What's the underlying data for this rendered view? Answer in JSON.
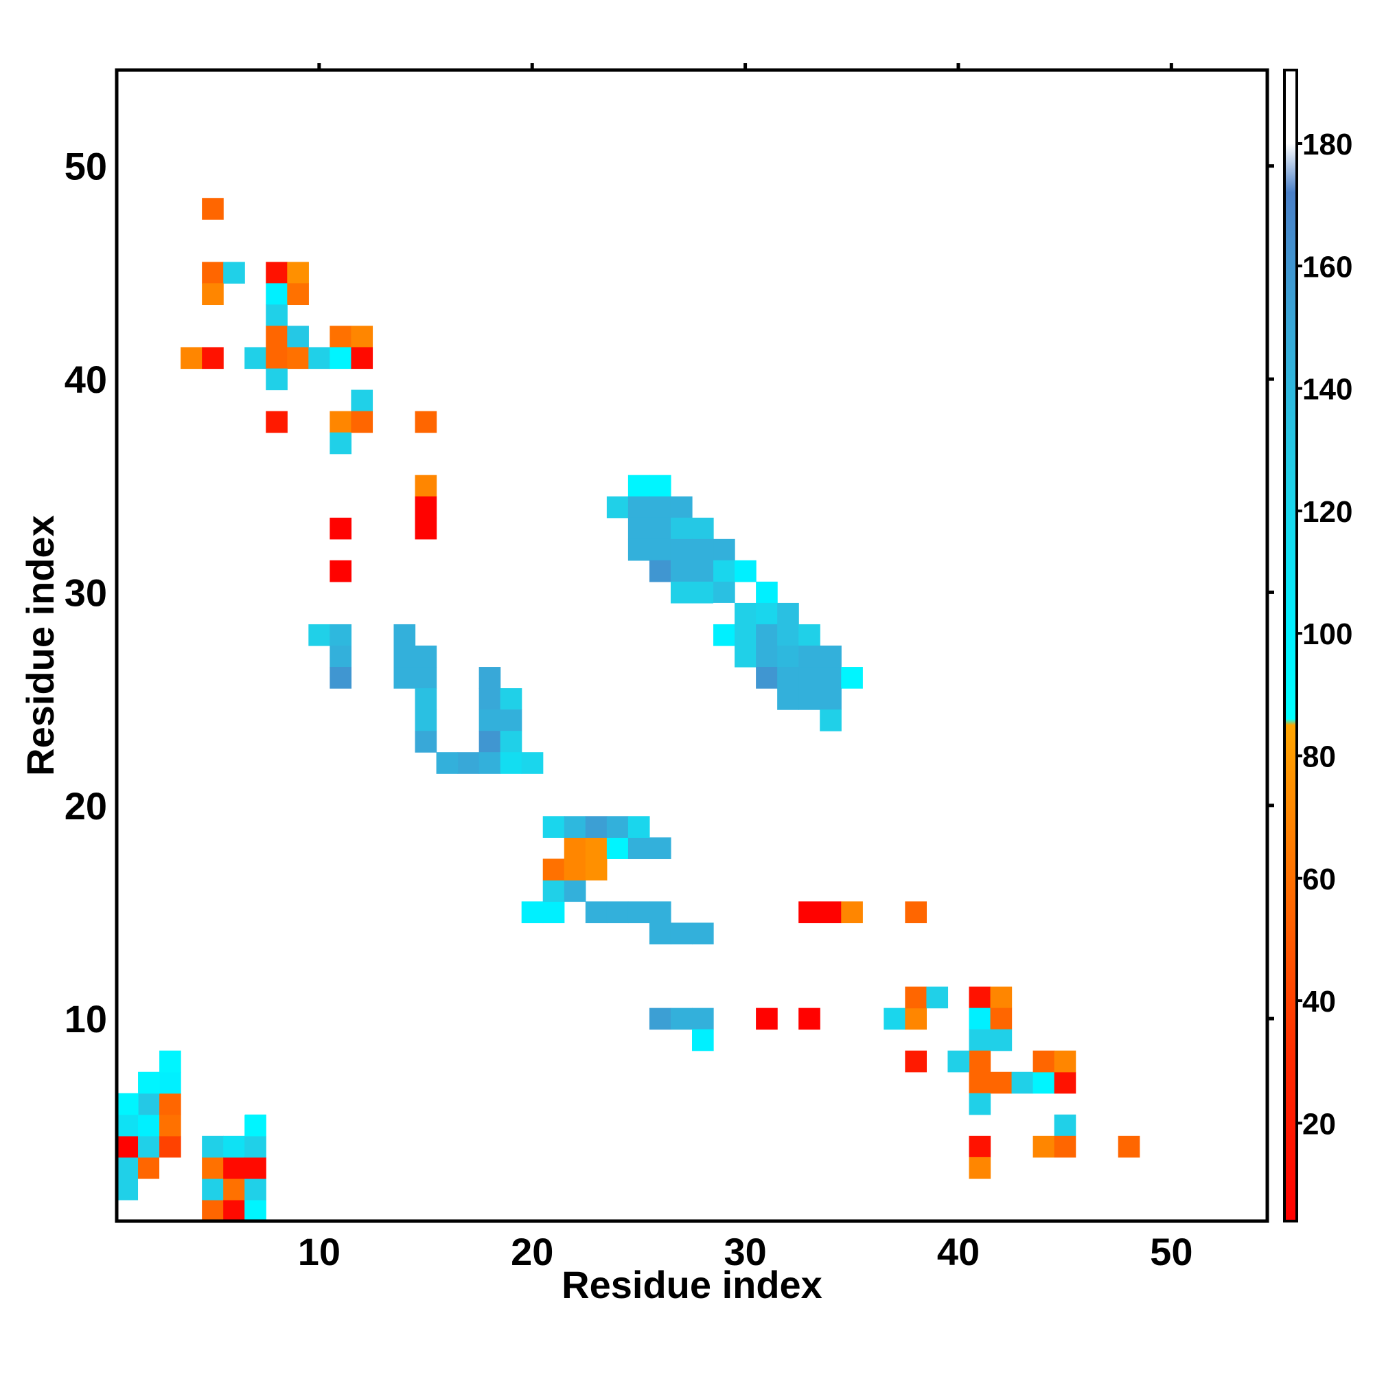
{
  "chart_data": {
    "type": "heatmap",
    "title": "",
    "xlabel": "Residue index",
    "ylabel": "Residue index",
    "xlim": [
      0.5,
      54.5
    ],
    "ylim": [
      0.5,
      54.5
    ],
    "x_ticks": [
      10,
      20,
      30,
      40,
      50
    ],
    "y_ticks": [
      10,
      20,
      30,
      40,
      50
    ],
    "grid": false,
    "colorbar": {
      "range": [
        4,
        192
      ],
      "ticks": [
        20,
        40,
        60,
        80,
        100,
        120,
        140,
        160,
        180
      ],
      "stops": [
        {
          "value": 4,
          "color": "#ff0000"
        },
        {
          "value": 30,
          "color": "#ff2a00"
        },
        {
          "value": 55,
          "color": "#ff6600"
        },
        {
          "value": 85,
          "color": "#ffa500"
        },
        {
          "value": 86,
          "color": "#00ffff"
        },
        {
          "value": 100,
          "color": "#00f0ff"
        },
        {
          "value": 125,
          "color": "#20d0e8"
        },
        {
          "value": 150,
          "color": "#38a8d8"
        },
        {
          "value": 172,
          "color": "#4a80c8"
        },
        {
          "value": 180,
          "color": "#ffffff"
        },
        {
          "value": 192,
          "color": "#ffffff"
        }
      ]
    },
    "cells": [
      [
        1,
        1,
        190
      ],
      [
        1,
        2,
        125
      ],
      [
        1,
        3,
        125
      ],
      [
        1,
        4,
        5
      ],
      [
        1,
        5,
        112
      ],
      [
        2,
        2,
        190
      ],
      [
        2,
        3,
        55
      ],
      [
        2,
        4,
        125
      ],
      [
        2,
        5,
        100
      ],
      [
        2,
        6,
        130
      ],
      [
        3,
        3,
        190
      ],
      [
        3,
        4,
        40
      ],
      [
        3,
        5,
        60
      ],
      [
        3,
        6,
        55
      ],
      [
        3,
        7,
        100
      ],
      [
        5,
        1,
        55
      ],
      [
        5,
        2,
        125
      ],
      [
        5,
        3,
        60
      ],
      [
        5,
        4,
        125
      ],
      [
        6,
        1,
        10
      ],
      [
        6,
        2,
        60
      ],
      [
        6,
        3,
        10
      ],
      [
        6,
        4,
        112
      ],
      [
        7,
        1,
        95
      ],
      [
        7,
        2,
        125
      ],
      [
        7,
        3,
        10
      ],
      [
        7,
        4,
        125
      ],
      [
        7,
        5,
        95
      ],
      [
        1,
        6,
        95
      ],
      [
        2,
        7,
        95
      ],
      [
        3,
        8,
        95
      ],
      [
        6,
        6,
        190
      ],
      [
        7,
        7,
        190
      ],
      [
        8,
        8,
        190
      ],
      [
        9,
        9,
        190
      ],
      [
        10,
        10,
        190
      ],
      [
        11,
        11,
        190
      ],
      [
        12,
        12,
        190
      ],
      [
        13,
        13,
        190
      ],
      [
        14,
        14,
        190
      ],
      [
        15,
        15,
        190
      ],
      [
        16,
        16,
        190
      ],
      [
        17,
        17,
        190
      ],
      [
        18,
        18,
        190
      ],
      [
        19,
        19,
        190
      ],
      [
        20,
        20,
        190
      ],
      [
        21,
        21,
        190
      ],
      [
        22,
        22,
        190
      ],
      [
        23,
        23,
        190
      ],
      [
        24,
        24,
        190
      ],
      [
        25,
        25,
        190
      ],
      [
        26,
        26,
        190
      ],
      [
        27,
        27,
        190
      ],
      [
        28,
        28,
        190
      ],
      [
        29,
        29,
        190
      ],
      [
        30,
        30,
        190
      ],
      [
        31,
        31,
        190
      ],
      [
        32,
        32,
        190
      ],
      [
        33,
        33,
        190
      ],
      [
        34,
        34,
        190
      ],
      [
        35,
        35,
        190
      ],
      [
        36,
        36,
        190
      ],
      [
        37,
        37,
        190
      ],
      [
        38,
        38,
        190
      ],
      [
        39,
        39,
        190
      ],
      [
        40,
        40,
        190
      ],
      [
        41,
        41,
        190
      ],
      [
        42,
        42,
        190
      ],
      [
        43,
        43,
        190
      ],
      [
        44,
        44,
        190
      ],
      [
        45,
        45,
        190
      ],
      [
        46,
        46,
        190
      ],
      [
        47,
        47,
        190
      ],
      [
        48,
        48,
        190
      ],
      [
        49,
        49,
        190
      ],
      [
        50,
        50,
        190
      ],
      [
        51,
        51,
        190
      ],
      [
        52,
        52,
        190
      ],
      [
        53,
        53,
        190
      ],
      [
        54,
        54,
        190
      ],
      [
        26,
        10,
        155
      ],
      [
        27,
        10,
        145
      ],
      [
        28,
        10,
        145
      ],
      [
        28,
        9,
        100
      ],
      [
        31,
        10,
        5
      ],
      [
        33,
        10,
        5
      ],
      [
        37,
        10,
        120
      ],
      [
        38,
        10,
        70
      ],
      [
        38,
        11,
        55
      ],
      [
        39,
        11,
        125
      ],
      [
        41,
        11,
        15
      ],
      [
        42,
        11,
        70
      ],
      [
        41,
        10,
        100
      ],
      [
        42,
        10,
        55
      ],
      [
        41,
        9,
        125
      ],
      [
        41,
        8,
        55
      ],
      [
        42,
        9,
        125
      ],
      [
        38,
        8,
        20
      ],
      [
        40,
        8,
        125
      ],
      [
        41,
        7,
        55
      ],
      [
        42,
        7,
        55
      ],
      [
        43,
        7,
        125
      ],
      [
        44,
        7,
        95
      ],
      [
        45,
        7,
        15
      ],
      [
        44,
        8,
        55
      ],
      [
        45,
        8,
        70
      ],
      [
        41,
        6,
        125
      ],
      [
        45,
        5,
        125
      ],
      [
        41,
        4,
        15
      ],
      [
        44,
        4,
        70
      ],
      [
        45,
        4,
        55
      ],
      [
        48,
        4,
        55
      ],
      [
        41,
        3,
        70
      ],
      [
        33,
        15,
        5
      ],
      [
        34,
        15,
        5
      ],
      [
        35,
        15,
        70
      ],
      [
        38,
        15,
        55
      ],
      [
        23,
        15,
        145
      ],
      [
        24,
        15,
        145
      ],
      [
        25,
        15,
        145
      ],
      [
        26,
        15,
        145
      ],
      [
        26,
        14,
        145
      ],
      [
        27,
        14,
        145
      ],
      [
        28,
        14,
        145
      ],
      [
        20,
        15,
        100
      ],
      [
        21,
        15,
        100
      ],
      [
        21,
        16,
        125
      ],
      [
        22,
        16,
        145
      ],
      [
        21,
        17,
        60
      ],
      [
        22,
        17,
        70
      ],
      [
        23,
        17,
        75
      ],
      [
        22,
        18,
        70
      ],
      [
        23,
        18,
        75
      ],
      [
        24,
        18,
        95
      ],
      [
        25,
        18,
        145
      ],
      [
        26,
        18,
        145
      ],
      [
        21,
        19,
        120
      ],
      [
        22,
        19,
        140
      ],
      [
        23,
        19,
        155
      ],
      [
        24,
        19,
        145
      ],
      [
        25,
        19,
        120
      ],
      [
        5,
        48,
        55
      ],
      [
        5,
        45,
        55
      ],
      [
        6,
        45,
        125
      ],
      [
        8,
        45,
        15
      ],
      [
        9,
        45,
        75
      ],
      [
        5,
        44,
        70
      ],
      [
        8,
        44,
        100
      ],
      [
        9,
        44,
        60
      ],
      [
        8,
        43,
        125
      ],
      [
        8,
        42,
        55
      ],
      [
        9,
        42,
        130
      ],
      [
        11,
        42,
        60
      ],
      [
        12,
        42,
        70
      ],
      [
        4,
        41,
        70
      ],
      [
        5,
        41,
        15
      ],
      [
        7,
        41,
        125
      ],
      [
        8,
        41,
        55
      ],
      [
        9,
        41,
        60
      ],
      [
        10,
        41,
        125
      ],
      [
        11,
        41,
        95
      ],
      [
        12,
        41,
        10
      ],
      [
        8,
        40,
        125
      ],
      [
        12,
        39,
        125
      ],
      [
        8,
        38,
        20
      ],
      [
        11,
        38,
        70
      ],
      [
        12,
        38,
        55
      ],
      [
        15,
        38,
        55
      ],
      [
        11,
        37,
        125
      ],
      [
        15,
        35,
        70
      ],
      [
        15,
        34,
        5
      ],
      [
        15,
        33,
        5
      ],
      [
        11,
        33,
        5
      ],
      [
        11,
        31,
        5
      ],
      [
        10,
        28,
        125
      ],
      [
        11,
        28,
        140
      ],
      [
        14,
        28,
        145
      ],
      [
        11,
        27,
        145
      ],
      [
        14,
        27,
        145
      ],
      [
        15,
        27,
        145
      ],
      [
        11,
        26,
        160
      ],
      [
        14,
        26,
        145
      ],
      [
        15,
        26,
        145
      ],
      [
        18,
        26,
        150
      ],
      [
        15,
        25,
        135
      ],
      [
        18,
        25,
        150
      ],
      [
        19,
        25,
        125
      ],
      [
        15,
        24,
        135
      ],
      [
        18,
        24,
        145
      ],
      [
        19,
        24,
        145
      ],
      [
        15,
        23,
        150
      ],
      [
        18,
        23,
        160
      ],
      [
        19,
        23,
        125
      ],
      [
        17,
        22,
        150
      ],
      [
        16,
        22,
        145
      ],
      [
        18,
        22,
        145
      ],
      [
        19,
        22,
        115
      ],
      [
        20,
        22,
        120
      ],
      [
        25,
        35,
        95
      ],
      [
        26,
        35,
        95
      ],
      [
        24,
        34,
        125
      ],
      [
        25,
        34,
        145
      ],
      [
        26,
        34,
        145
      ],
      [
        27,
        34,
        145
      ],
      [
        25,
        33,
        145
      ],
      [
        26,
        33,
        145
      ],
      [
        27,
        33,
        130
      ],
      [
        28,
        33,
        130
      ],
      [
        25,
        32,
        145
      ],
      [
        26,
        32,
        145
      ],
      [
        27,
        32,
        145
      ],
      [
        28,
        32,
        145
      ],
      [
        29,
        32,
        145
      ],
      [
        26,
        31,
        160
      ],
      [
        27,
        31,
        145
      ],
      [
        28,
        31,
        145
      ],
      [
        29,
        31,
        120
      ],
      [
        30,
        31,
        100
      ],
      [
        27,
        30,
        125
      ],
      [
        28,
        30,
        125
      ],
      [
        29,
        30,
        135
      ],
      [
        31,
        30,
        100
      ],
      [
        29,
        29,
        190
      ],
      [
        30,
        29,
        125
      ],
      [
        31,
        29,
        120
      ],
      [
        32,
        29,
        135
      ],
      [
        29,
        28,
        100
      ],
      [
        30,
        28,
        125
      ],
      [
        31,
        28,
        145
      ],
      [
        32,
        28,
        135
      ],
      [
        33,
        28,
        125
      ],
      [
        30,
        27,
        125
      ],
      [
        31,
        27,
        145
      ],
      [
        32,
        27,
        140
      ],
      [
        33,
        27,
        145
      ],
      [
        34,
        27,
        145
      ],
      [
        31,
        26,
        160
      ],
      [
        32,
        26,
        145
      ],
      [
        33,
        26,
        145
      ],
      [
        34,
        26,
        145
      ],
      [
        35,
        26,
        95
      ],
      [
        32,
        25,
        145
      ],
      [
        33,
        25,
        145
      ],
      [
        34,
        25,
        145
      ],
      [
        34,
        24,
        125
      ]
    ]
  }
}
